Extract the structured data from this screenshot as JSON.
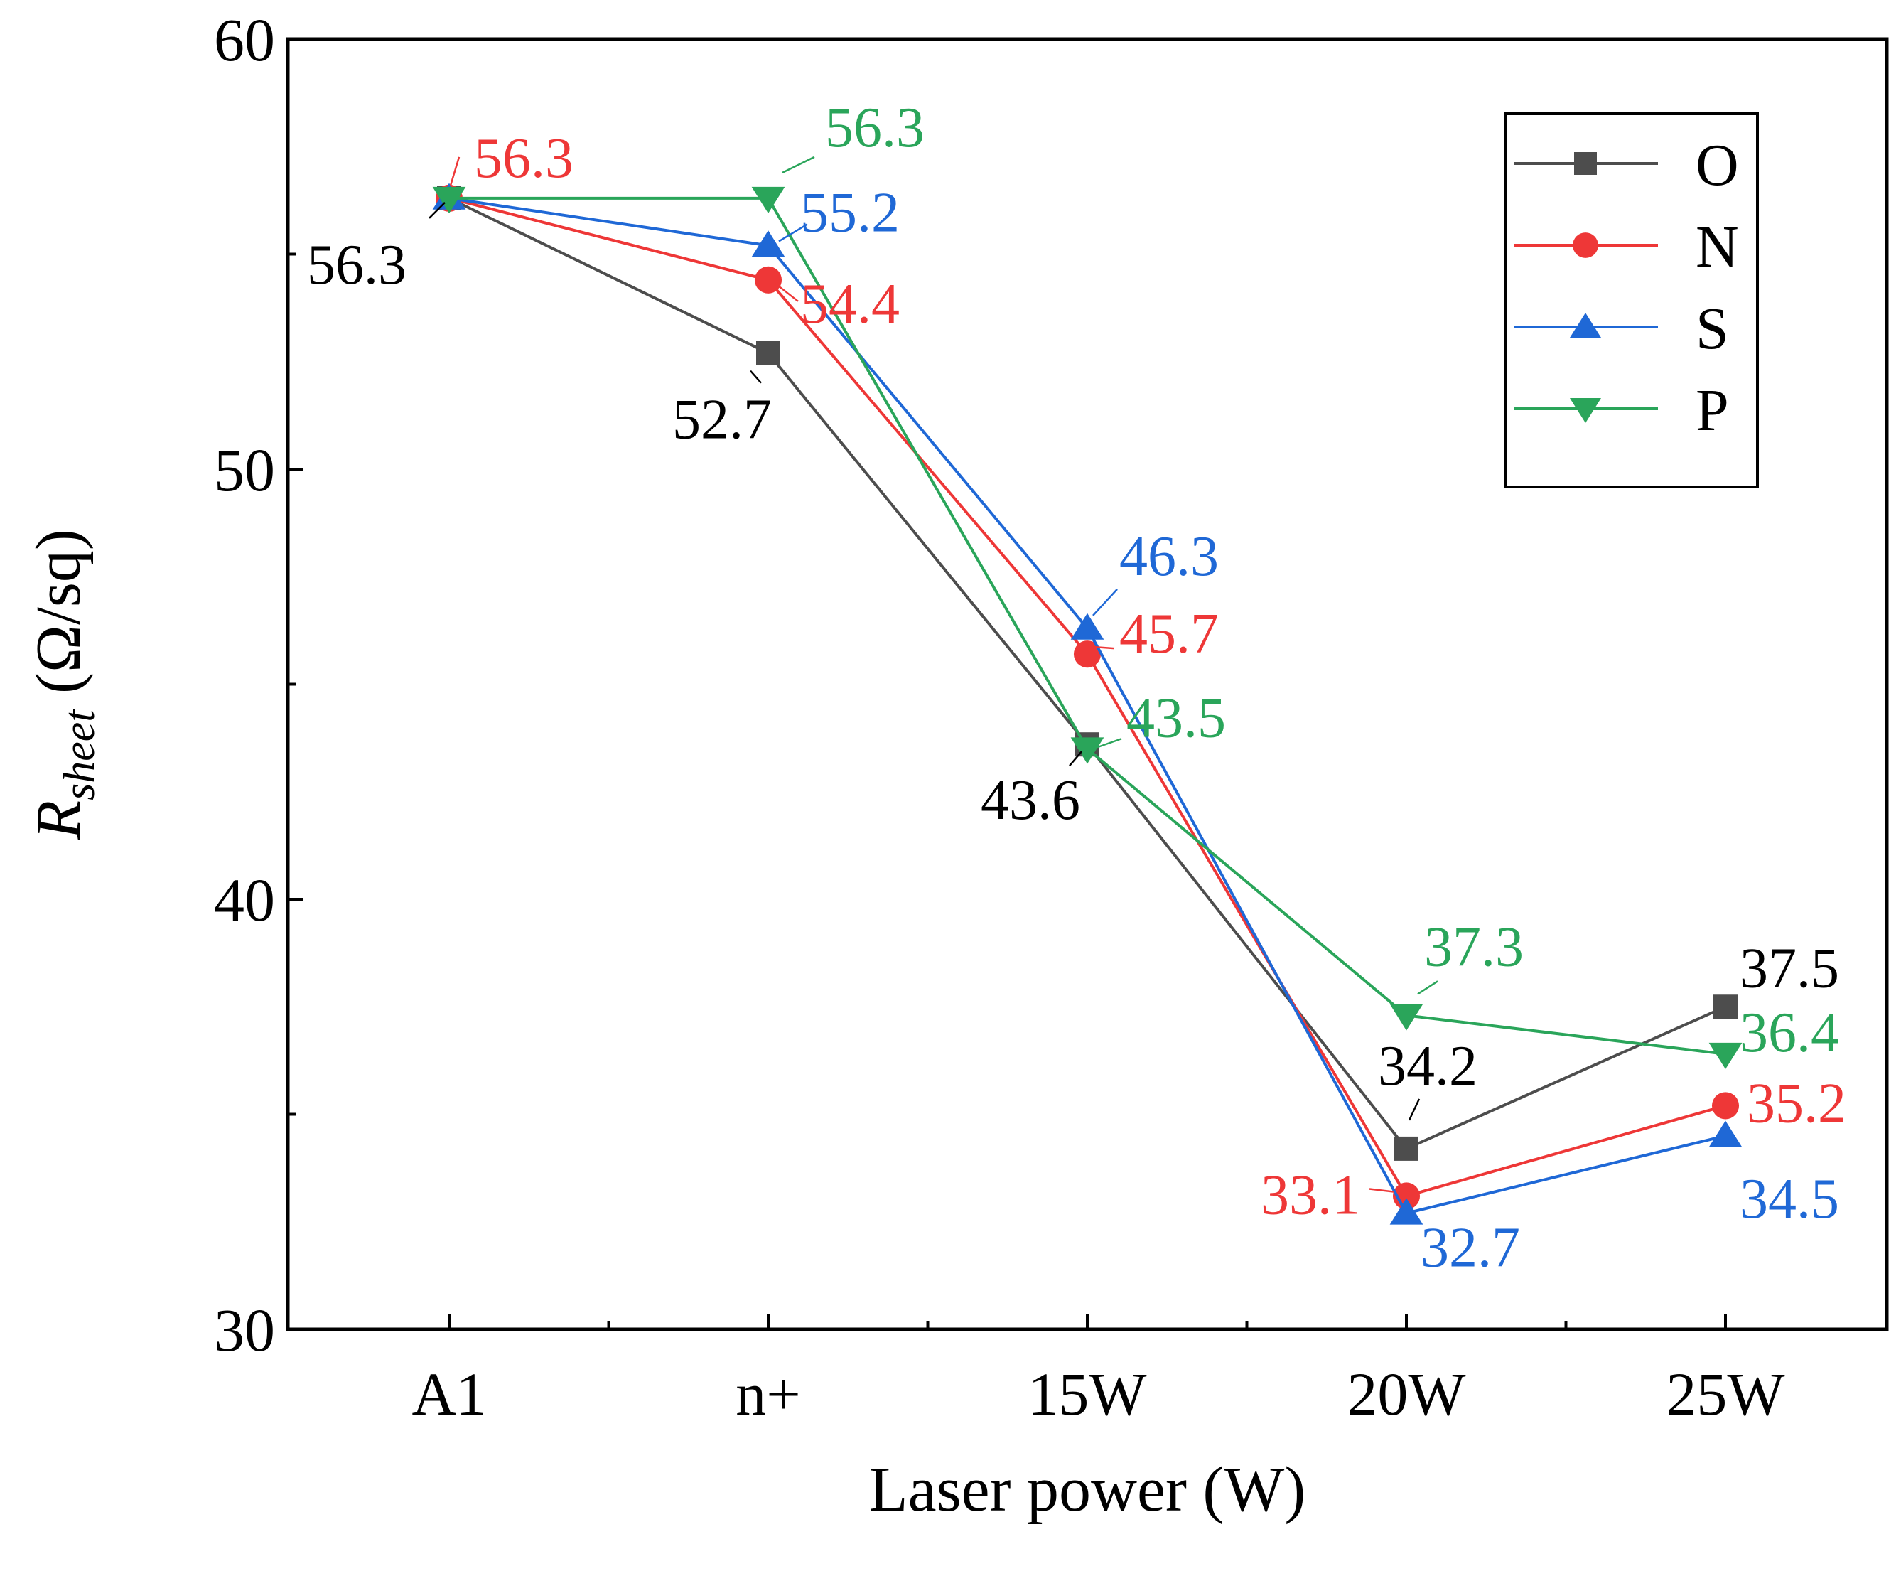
{
  "chart_data": {
    "type": "line",
    "xlabel": "Laser power (W)",
    "ylabel": {
      "base": "R",
      "subscript": "sheet",
      "unit": "(Ω/sq)"
    },
    "categories": [
      "A1",
      "n+",
      "15W",
      "20W",
      "25W"
    ],
    "ylim": [
      30,
      60
    ],
    "yticks": [
      30,
      40,
      50,
      60
    ],
    "legend_position": "top-right",
    "series": [
      {
        "name": "O",
        "color": "#4d4d4d",
        "label_color": "#000000",
        "marker": "square",
        "values": [
          56.3,
          52.7,
          43.6,
          34.2,
          37.5
        ],
        "labels": [
          "56.3",
          "52.7",
          "43.6",
          "34.2",
          "37.5"
        ]
      },
      {
        "name": "N",
        "color": "#ee3737",
        "label_color": "#ee3737",
        "marker": "circle",
        "values": [
          56.3,
          54.4,
          45.7,
          33.1,
          35.2
        ],
        "labels": [
          "56.3",
          "54.4",
          "45.7",
          "33.1",
          "35.2"
        ]
      },
      {
        "name": "S",
        "color": "#1f68d6",
        "label_color": "#1f68d6",
        "marker": "triangle-up",
        "values": [
          56.3,
          55.2,
          46.3,
          32.7,
          34.5
        ],
        "labels": [
          "",
          "55.2",
          "46.3",
          "32.7",
          "34.5"
        ]
      },
      {
        "name": "P",
        "color": "#2aa55a",
        "label_color": "#2aa55a",
        "marker": "triangle-down",
        "values": [
          56.3,
          56.3,
          43.5,
          37.3,
          36.4
        ],
        "labels": [
          "",
          "56.3",
          "43.5",
          "37.3",
          "36.4"
        ]
      }
    ]
  }
}
